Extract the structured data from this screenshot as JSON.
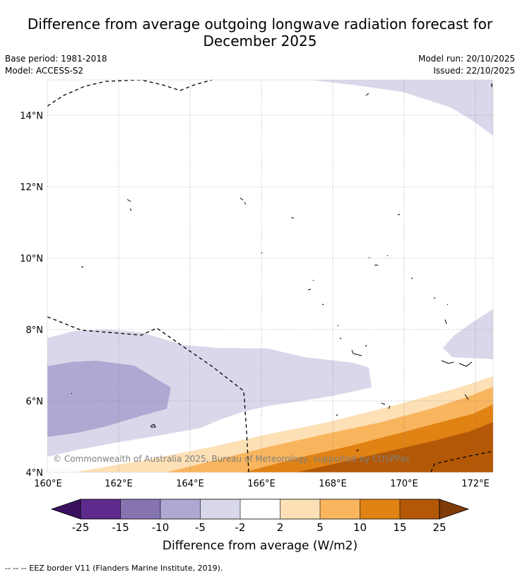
{
  "title_line1": "Difference from average outgoing longwave radiation forecast for",
  "title_line2": "December 2025",
  "base_period": "Base period: 1981-2018",
  "model": "Model: ACCESS-S2",
  "model_run": "Model run: 20/10/2025",
  "issued": "Issued: 22/10/2025",
  "map": {
    "lon_labels": [
      "160°E",
      "162°E",
      "164°E",
      "166°E",
      "168°E",
      "170°E",
      "172°E"
    ],
    "lat_labels": [
      "14°N",
      "12°N",
      "10°N",
      "8°N",
      "6°N",
      "4°N"
    ],
    "copyright": "© Commonwealth of Australia 2025, Bureau of Meteorology, supported by COSPPac"
  },
  "colorbar": {
    "title": "Difference from average (W/m2)",
    "ticks": [
      "-25",
      "-15",
      "-10",
      "-5",
      "-2",
      "2",
      "5",
      "10",
      "15",
      "25"
    ],
    "colors": {
      "below_-25": "#3a0f5e",
      "-25_-15": "#5e2a8c",
      "-15_-10": "#8574b0",
      "-10_-5": "#b0a8d2",
      "-5_-2": "#d8d8ea",
      "-2_2": "#ffffff",
      "2_5": "#fde0b5",
      "5_10": "#f9b55e",
      "10_15": "#e08214",
      "15_25": "#b35806",
      "above_25": "#7f3b08"
    }
  },
  "footer": "-- -- -- EEZ border V11 (Flanders Marine Institute, 2019)."
}
